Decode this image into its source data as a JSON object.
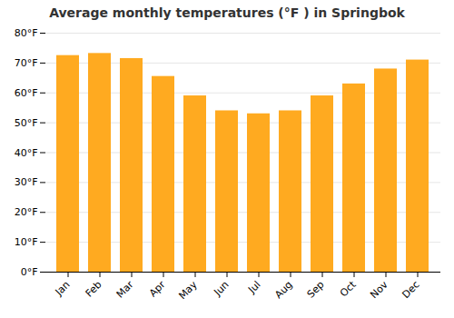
{
  "chart_data": {
    "type": "bar",
    "title": "Average monthly temperatures (°F ) in Springbok",
    "categories": [
      "Jan",
      "Feb",
      "Mar",
      "Apr",
      "May",
      "Jun",
      "Jul",
      "Aug",
      "Sep",
      "Oct",
      "Nov",
      "Dec"
    ],
    "values": [
      72.5,
      73.2,
      71.5,
      65.5,
      59.0,
      54.0,
      53.0,
      54.0,
      59.0,
      63.0,
      68.0,
      71.0
    ],
    "color": "#FFAA20",
    "ylim": [
      0,
      80
    ],
    "yticks": [
      {
        "value": 0,
        "label": "0°F"
      },
      {
        "value": 10,
        "label": "10°F"
      },
      {
        "value": 20,
        "label": "20°F"
      },
      {
        "value": 30,
        "label": "30°F"
      },
      {
        "value": 40,
        "label": "40°F"
      },
      {
        "value": 50,
        "label": "50°F"
      },
      {
        "value": 60,
        "label": "60°F"
      },
      {
        "value": 70,
        "label": "70°F"
      },
      {
        "value": 80,
        "label": "80°F"
      }
    ],
    "grid": true
  }
}
